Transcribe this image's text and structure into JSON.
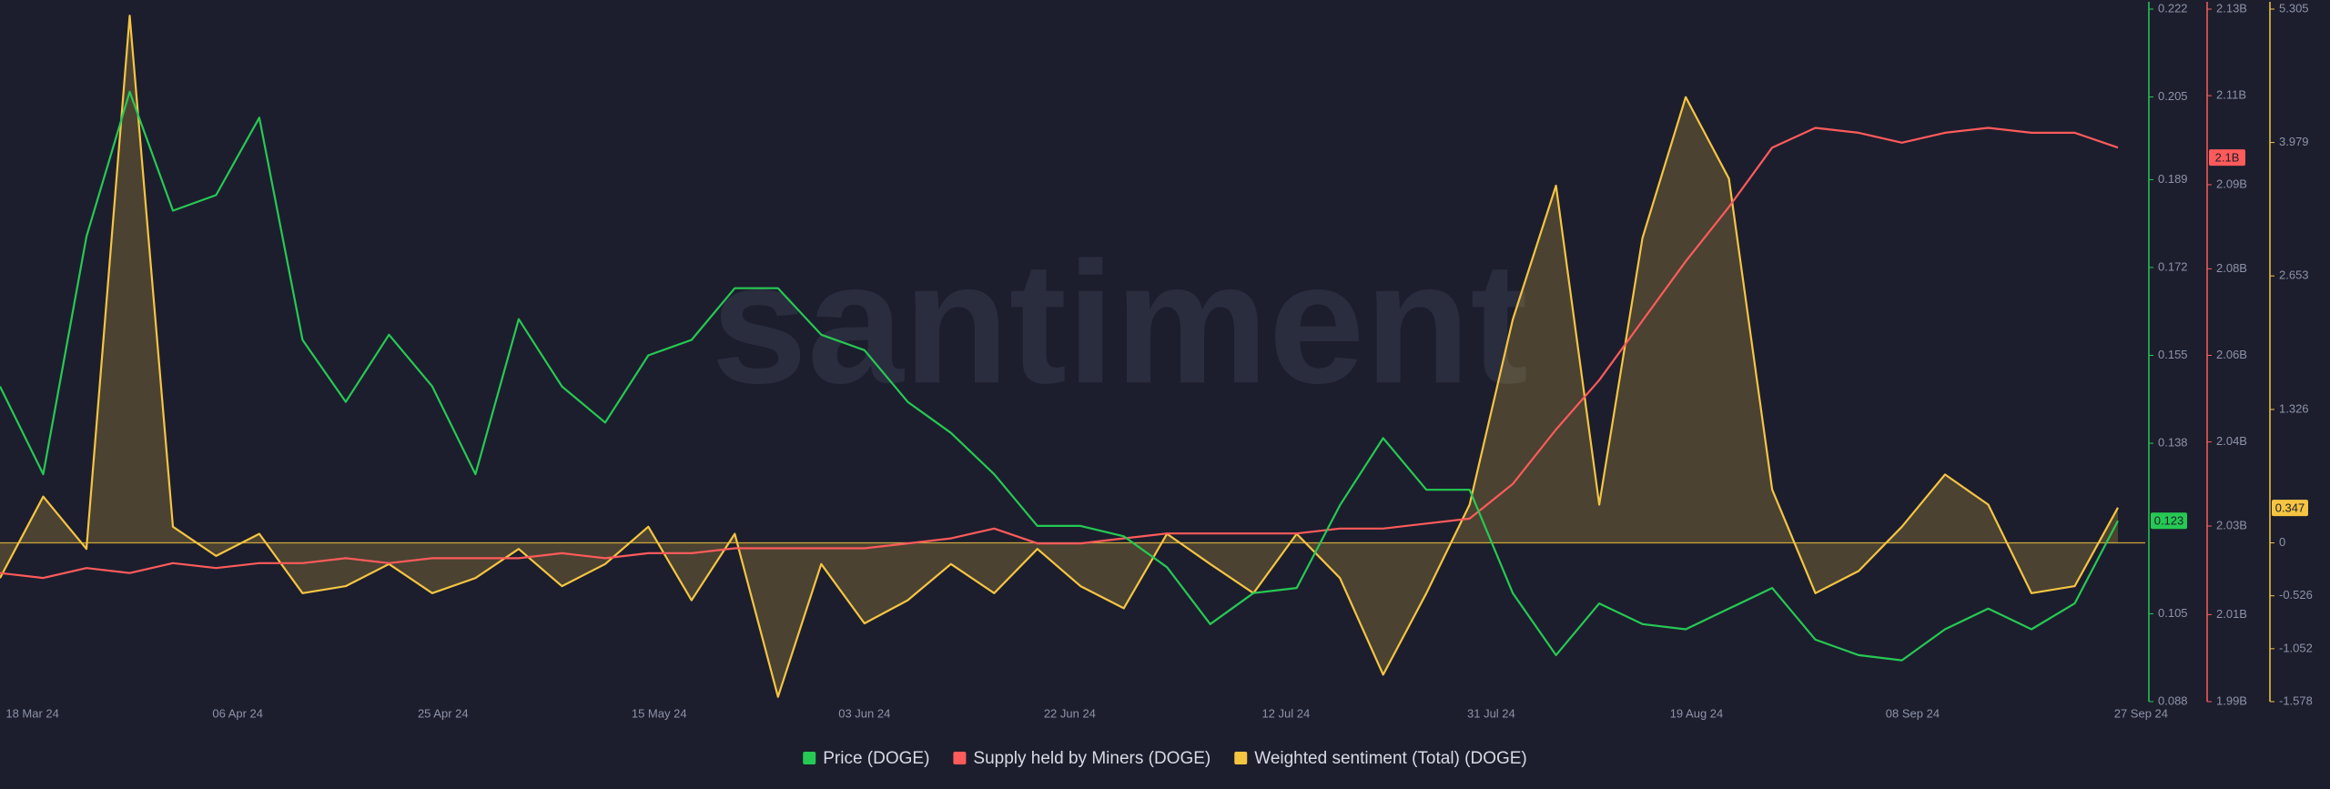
{
  "chart_data": {
    "type": "line",
    "watermark": "santiment",
    "x": [
      "2024-03-15",
      "2024-03-19",
      "2024-03-23",
      "2024-03-27",
      "2024-03-31",
      "2024-04-04",
      "2024-04-08",
      "2024-04-12",
      "2024-04-16",
      "2024-04-20",
      "2024-04-24",
      "2024-04-28",
      "2024-05-02",
      "2024-05-06",
      "2024-05-10",
      "2024-05-14",
      "2024-05-18",
      "2024-05-22",
      "2024-05-26",
      "2024-05-30",
      "2024-06-03",
      "2024-06-07",
      "2024-06-11",
      "2024-06-15",
      "2024-06-19",
      "2024-06-23",
      "2024-06-27",
      "2024-07-01",
      "2024-07-05",
      "2024-07-09",
      "2024-07-13",
      "2024-07-17",
      "2024-07-21",
      "2024-07-25",
      "2024-07-29",
      "2024-08-02",
      "2024-08-06",
      "2024-08-10",
      "2024-08-14",
      "2024-08-18",
      "2024-08-22",
      "2024-08-26",
      "2024-08-30",
      "2024-09-03",
      "2024-09-07",
      "2024-09-11",
      "2024-09-15",
      "2024-09-19",
      "2024-09-23",
      "2024-09-27"
    ],
    "xlim": [
      "2024-03-15",
      "2024-09-27"
    ],
    "xticks": [
      {
        "value": "2024-03-18",
        "label": "18 Mar 24"
      },
      {
        "value": "2024-04-06",
        "label": "06 Apr 24"
      },
      {
        "value": "2024-04-25",
        "label": "25 Apr 24"
      },
      {
        "value": "2024-05-15",
        "label": "15 May 24"
      },
      {
        "value": "2024-06-03",
        "label": "03 Jun 24"
      },
      {
        "value": "2024-06-22",
        "label": "22 Jun 24"
      },
      {
        "value": "2024-07-12",
        "label": "12 Jul 24"
      },
      {
        "value": "2024-07-31",
        "label": "31 Jul 24"
      },
      {
        "value": "2024-08-19",
        "label": "19 Aug 24"
      },
      {
        "value": "2024-09-08",
        "label": "08 Sep 24"
      },
      {
        "value": "2024-09-27",
        "label": "27 Sep 24"
      }
    ],
    "ylim": [
      0.088,
      0.222
    ],
    "yticks": [
      0.222,
      0.205,
      0.189,
      0.172,
      0.155,
      0.138,
      0.105,
      0.088
    ],
    "y2lim": [
      1.99,
      2.13
    ],
    "y2ticks": [
      {
        "value": 2.13,
        "label": "2.13B"
      },
      {
        "value": 2.1125,
        "label": "2.11B"
      },
      {
        "value": 2.0945,
        "label": "2.09B"
      },
      {
        "value": 2.0775,
        "label": "2.08B"
      },
      {
        "value": 2.06,
        "label": "2.06B"
      },
      {
        "value": 2.0425,
        "label": "2.04B"
      },
      {
        "value": 2.0255,
        "label": "2.03B"
      },
      {
        "value": 2.0076,
        "label": "2.01B"
      },
      {
        "value": 1.99,
        "label": "1.99B"
      }
    ],
    "y3lim": [
      -1.578,
      5.305
    ],
    "y3ticks": [
      5.305,
      3.979,
      2.653,
      1.326,
      0,
      -0.526,
      -1.052,
      -1.578
    ],
    "series": [
      {
        "name": "Price (DOGE)",
        "color": "#26c953",
        "axis": "y",
        "marker": 0.123,
        "values": [
          0.149,
          0.132,
          0.178,
          0.206,
          0.183,
          0.186,
          0.201,
          0.158,
          0.146,
          0.159,
          0.149,
          0.132,
          0.162,
          0.149,
          0.142,
          0.155,
          0.158,
          0.168,
          0.168,
          0.159,
          0.156,
          0.146,
          0.14,
          0.132,
          0.122,
          0.122,
          0.12,
          0.114,
          0.103,
          0.109,
          0.11,
          0.126,
          0.139,
          0.129,
          0.129,
          0.109,
          0.097,
          0.107,
          0.103,
          0.102,
          0.106,
          0.11,
          0.1,
          0.097,
          0.096,
          0.102,
          0.106,
          0.102,
          0.107,
          0.123
        ]
      },
      {
        "name": "Supply held by Miners (DOGE)",
        "color": "#ff5b5b",
        "axis": "y2",
        "marker": {
          "value": 2.1,
          "label": "2.1B"
        },
        "values": [
          2.016,
          2.015,
          2.017,
          2.016,
          2.018,
          2.017,
          2.018,
          2.018,
          2.019,
          2.018,
          2.019,
          2.019,
          2.019,
          2.02,
          2.019,
          2.02,
          2.02,
          2.021,
          2.021,
          2.021,
          2.021,
          2.022,
          2.023,
          2.025,
          2.022,
          2.022,
          2.023,
          2.024,
          2.024,
          2.024,
          2.024,
          2.025,
          2.025,
          2.026,
          2.027,
          2.034,
          2.045,
          2.055,
          2.067,
          2.079,
          2.09,
          2.102,
          2.106,
          2.105,
          2.103,
          2.105,
          2.106,
          2.105,
          2.105,
          2.102
        ]
      },
      {
        "name": "Weighted sentiment (Total) (DOGE)",
        "color": "#f5c542",
        "axis": "y3",
        "marker": 0.347,
        "values": [
          -0.35,
          0.46,
          -0.06,
          5.24,
          0.16,
          -0.13,
          0.09,
          -0.5,
          -0.43,
          -0.21,
          -0.5,
          -0.35,
          -0.06,
          -0.43,
          -0.21,
          0.16,
          -0.57,
          0.09,
          -1.53,
          -0.21,
          -0.8,
          -0.57,
          -0.21,
          -0.5,
          -0.06,
          -0.43,
          -0.65,
          0.09,
          -0.21,
          -0.5,
          0.09,
          -0.35,
          -1.31,
          -0.5,
          0.38,
          2.22,
          3.55,
          0.38,
          3.03,
          4.43,
          3.62,
          0.53,
          -0.5,
          -0.28,
          0.16,
          0.68,
          0.38,
          -0.5,
          -0.43,
          0.35
        ]
      }
    ]
  }
}
